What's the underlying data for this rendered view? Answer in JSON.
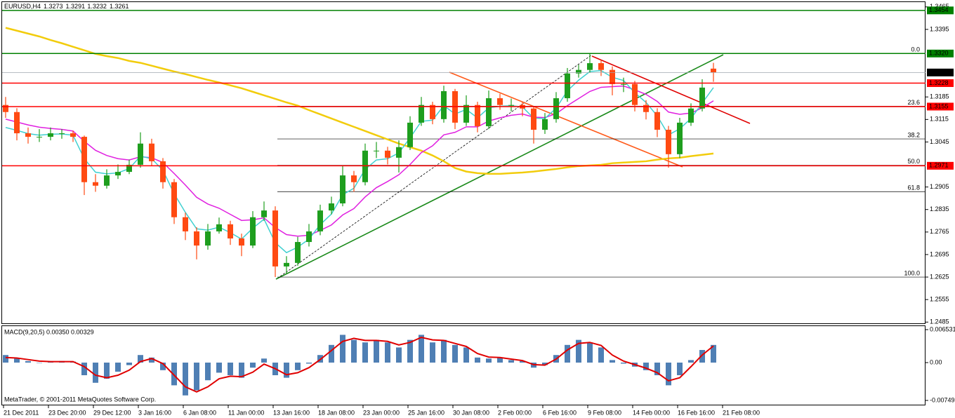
{
  "chart_data": {
    "type": "candlestick",
    "symbol": "EURUSD,H4",
    "copyright": "MetaTrader, © 2001-2011 MetaQuotes Software Corp.",
    "up_color": "#1e9e1e",
    "down_color": "#ff4a12",
    "ylim": [
      1.2479,
      1.3482
    ],
    "yticks": [
      1.3465,
      1.3395,
      1.3185,
      1.3115,
      1.3045,
      1.2905,
      1.2835,
      1.2765,
      1.2695,
      1.2625,
      1.2555,
      1.2485
    ],
    "xtick_labels": [
      "21 Dec 2011",
      "23 Dec 20:00",
      "29 Dec 12:00",
      "3 Jan 16:00",
      "6 Jan 08:00",
      "11 Jan 00:00",
      "13 Jan 16:00",
      "18 Jan 08:00",
      "23 Jan 00:00",
      "25 Jan 16:00",
      "30 Jan 08:00",
      "2 Feb 00:00",
      "6 Feb 16:00",
      "9 Feb 08:00",
      "14 Feb 00:00",
      "16 Feb 16:00",
      "21 Feb 08:00"
    ],
    "open": [
      1.316,
      1.3138,
      1.3072,
      1.3061,
      1.3061,
      1.3072,
      1.3072,
      1.3061,
      1.292,
      1.2909,
      1.2941,
      1.2952,
      1.2974,
      1.304,
      1.2985,
      1.292,
      1.2811,
      1.2767,
      1.2723,
      1.2767,
      1.2789,
      1.2745,
      1.2723,
      1.2811,
      1.2832,
      1.2658,
      1.2669,
      1.2734,
      1.2767,
      1.2832,
      1.2854,
      1.2941,
      1.292,
      1.3018,
      1.3018,
      1.2996,
      1.3029,
      1.3105,
      1.316,
      1.3116,
      1.3203,
      1.3105,
      1.316,
      1.3094,
      1.3181,
      1.316,
      1.316,
      1.3149,
      1.3083,
      1.3116,
      1.3181,
      1.3258,
      1.3269,
      1.329,
      1.3269,
      1.3225,
      1.3225,
      1.316,
      1.3138,
      1.3083,
      1.3007,
      1.3105,
      1.3149,
      1.3273
    ],
    "high": [
      1.3185,
      1.315,
      1.309,
      1.3085,
      1.309,
      1.3085,
      1.308,
      1.3065,
      1.2945,
      1.296,
      1.2975,
      1.299,
      1.3075,
      1.3055,
      1.2995,
      1.293,
      1.2825,
      1.278,
      1.279,
      1.281,
      1.28,
      1.276,
      1.283,
      1.286,
      1.2845,
      1.269,
      1.275,
      1.279,
      1.285,
      1.2875,
      1.297,
      1.2955,
      1.304,
      1.3045,
      1.303,
      1.305,
      1.3125,
      1.3185,
      1.317,
      1.322,
      1.321,
      1.319,
      1.317,
      1.3205,
      1.3195,
      1.318,
      1.317,
      1.3155,
      1.3135,
      1.32,
      1.3275,
      1.3285,
      1.332,
      1.33,
      1.328,
      1.3245,
      1.3235,
      1.3175,
      1.315,
      1.3095,
      1.312,
      1.3165,
      1.324,
      1.3291
    ],
    "low": [
      1.312,
      1.305,
      1.304,
      1.3045,
      1.305,
      1.3055,
      1.3045,
      1.288,
      1.289,
      1.29,
      1.293,
      1.2945,
      1.2965,
      1.297,
      1.29,
      1.279,
      1.274,
      1.268,
      1.271,
      1.276,
      1.2725,
      1.269,
      1.2715,
      1.28,
      1.2625,
      1.2635,
      1.266,
      1.272,
      1.2755,
      1.282,
      1.2845,
      1.289,
      1.291,
      1.2995,
      1.2975,
      1.295,
      1.302,
      1.3095,
      1.31,
      1.3105,
      1.3085,
      1.3095,
      1.3075,
      1.3085,
      1.3145,
      1.314,
      1.3125,
      1.304,
      1.307,
      1.3105,
      1.317,
      1.3245,
      1.326,
      1.325,
      1.319,
      1.32,
      1.314,
      1.3115,
      1.306,
      1.2965,
      1.2995,
      1.3095,
      1.314,
      1.3232
    ],
    "close": [
      1.3138,
      1.3072,
      1.3061,
      1.3061,
      1.3072,
      1.3072,
      1.3061,
      1.292,
      1.2909,
      1.2941,
      1.2952,
      1.2974,
      1.304,
      1.2985,
      1.292,
      1.2811,
      1.2767,
      1.2723,
      1.2767,
      1.2789,
      1.2745,
      1.2723,
      1.2811,
      1.2832,
      1.2658,
      1.2669,
      1.2734,
      1.2767,
      1.2832,
      1.2854,
      1.2941,
      1.292,
      1.3018,
      1.3018,
      1.2996,
      1.3029,
      1.3105,
      1.316,
      1.3116,
      1.3203,
      1.3105,
      1.316,
      1.3094,
      1.3181,
      1.316,
      1.316,
      1.3149,
      1.3083,
      1.3116,
      1.3181,
      1.3258,
      1.3269,
      1.329,
      1.3269,
      1.3225,
      1.3225,
      1.316,
      1.3138,
      1.3083,
      1.3007,
      1.3105,
      1.3149,
      1.3214,
      1.3261
    ],
    "overlays": [
      {
        "color": "#f2cc0c",
        "values": [
          1.34,
          1.3391,
          1.3382,
          1.3373,
          1.3362,
          1.3352,
          1.3341,
          1.333,
          1.3319,
          1.3312,
          1.3306,
          1.3297,
          1.3291,
          1.3282,
          1.3273,
          1.3264,
          1.3256,
          1.3247,
          1.3238,
          1.323,
          1.3221,
          1.3212,
          1.3201,
          1.319,
          1.3179,
          1.3168,
          1.3158,
          1.3144,
          1.3131,
          1.3118,
          1.3105,
          1.3092,
          1.3079,
          1.3066,
          1.3053,
          1.304,
          1.3029,
          1.3018,
          1.3003,
          1.2985,
          1.2964,
          1.2953,
          1.2948,
          1.2946,
          1.2946,
          1.2948,
          1.295,
          1.2953,
          1.2957,
          1.2961,
          1.2966,
          1.297,
          1.2972,
          1.2974,
          1.2979,
          1.2981,
          1.2983,
          1.2985,
          1.299,
          1.2994,
          1.2996,
          1.3001,
          1.3005,
          1.3009
        ]
      },
      {
        "color": "#e020e0",
        "values": [
          1.3116,
          1.3107,
          1.3098,
          1.3091,
          1.3087,
          1.3084,
          1.3079,
          1.3047,
          1.3019,
          1.3003,
          1.2993,
          1.2989,
          1.2999,
          1.2996,
          1.2981,
          1.2947,
          1.2911,
          1.2873,
          1.2852,
          1.2839,
          1.282,
          1.2801,
          1.2803,
          1.2809,
          1.2779,
          1.2757,
          1.2752,
          1.2755,
          1.277,
          1.2787,
          1.2818,
          1.2838,
          1.2874,
          1.2903,
          1.2922,
          1.2943,
          1.2975,
          1.3012,
          1.3033,
          1.3067,
          1.3075,
          1.3092,
          1.3092,
          1.311,
          1.312,
          1.3128,
          1.3132,
          1.3122,
          1.3121,
          1.3133,
          1.3158,
          1.318,
          1.3202,
          1.3215,
          1.3217,
          1.3219,
          1.3207,
          1.3193,
          1.3171,
          1.3138,
          1.3131,
          1.3135,
          1.3151,
          1.3173
        ]
      },
      {
        "color": "#40d0d0",
        "values": [
          1.309,
          1.3081,
          1.3071,
          1.3066,
          1.3069,
          1.307,
          1.3066,
          1.2993,
          1.2951,
          1.2946,
          1.2949,
          1.2962,
          1.3001,
          1.2993,
          1.2957,
          1.2884,
          1.2826,
          1.2775,
          1.2771,
          1.278,
          1.2763,
          1.2743,
          1.2777,
          1.2805,
          1.2732,
          1.2701,
          1.2718,
          1.2743,
          1.2788,
          1.2821,
          1.2881,
          1.2901,
          1.296,
          1.2989,
          1.2993,
          1.3011,
          1.3058,
          1.3109,
          1.3113,
          1.3158,
          1.3132,
          1.3146,
          1.312,
          1.3151,
          1.3156,
          1.3158,
          1.3154,
          1.3119,
          1.3118,
          1.315,
          1.3204,
          1.3237,
          1.3264,
          1.3267,
          1.3246,
          1.3236,
          1.3198,
          1.3168,
          1.3126,
          1.3067,
          1.3086,
          1.3118,
          1.3166,
          1.3214
        ]
      }
    ],
    "levels": [
      {
        "price": 1.3454,
        "color": "#008000",
        "text_color": "#000000"
      },
      {
        "price": 1.332,
        "label": "1.3320",
        "color": "#008000",
        "text_color": "#000000"
      },
      {
        "price": 1.3261,
        "color": "#a0a8b0",
        "box_color": "#000000",
        "text_color": "#ffffff"
      },
      {
        "price": 1.3228,
        "color": "#ff0000",
        "text_color": "#000000"
      },
      {
        "price": 1.3155,
        "color": "#ff0000",
        "text_color": "#000000"
      },
      {
        "price": 1.2971,
        "color": "#ff0000",
        "text_color": "#000000"
      }
    ],
    "fib": {
      "from": 1.2625,
      "to": 1.332,
      "color": "#000000",
      "levels": [
        {
          "value": 0,
          "label": "0.0"
        },
        23.6,
        38.2,
        {
          "value": 50,
          "label": "50.0"
        },
        61.8,
        {
          "value": 100,
          "label": "100.0"
        }
      ]
    },
    "indicator": {
      "type": "macd",
      "title": "MACD(9,20,5) 0.00350 0.00329",
      "bar_color": "#4f7fb4",
      "line_color": "#e00000",
      "ylim": [
        -0.008476,
        0.007365
      ],
      "yticks": [
        0.006531,
        {
          "value": 0,
          "label": "0.00"
        },
        -0.007495
      ],
      "histogram": [
        0.0015,
        0.0008,
        0.0003,
        0.0,
        0.0001,
        0.0003,
        0.0002,
        -0.0025,
        -0.004,
        -0.0032,
        -0.0018,
        -0.0005,
        0.0015,
        0.001,
        -0.0015,
        -0.0045,
        -0.0065,
        -0.0055,
        -0.0035,
        -0.002,
        -0.0025,
        -0.003,
        -0.001,
        0.0008,
        -0.0025,
        -0.003,
        -0.0015,
        -0.0002,
        0.0015,
        0.0035,
        0.0055,
        0.0045,
        0.004,
        0.0045,
        0.004,
        0.003,
        0.0045,
        0.0055,
        0.004,
        0.0045,
        0.0035,
        0.003,
        0.001,
        0.0008,
        0.001,
        0.0005,
        0.0003,
        -0.001,
        -0.0005,
        0.0015,
        0.0035,
        0.0045,
        0.004,
        0.003,
        0.0005,
        -0.0002,
        -0.0008,
        -0.0015,
        -0.0025,
        -0.0045,
        -0.0025,
        0.0005,
        0.0025,
        0.0035
      ],
      "signal": [
        0.001,
        0.0009,
        0.0006,
        0.0003,
        0.0002,
        0.0002,
        0.0002,
        -0.0008,
        -0.0025,
        -0.003,
        -0.0025,
        -0.0015,
        0.0002,
        0.0008,
        -0.0002,
        -0.0025,
        -0.0048,
        -0.0058,
        -0.0048,
        -0.0032,
        -0.0027,
        -0.0028,
        -0.0019,
        -0.0003,
        -0.0012,
        -0.0024,
        -0.002,
        -0.001,
        0.0006,
        0.0024,
        0.0042,
        0.0048,
        0.0044,
        0.0044,
        0.0042,
        0.0035,
        0.004,
        0.005,
        0.0045,
        0.0044,
        0.0038,
        0.0032,
        0.0018,
        0.0011,
        0.001,
        0.0007,
        0.0004,
        -0.0004,
        -0.0005,
        0.0007,
        0.0025,
        0.0038,
        0.004,
        0.0034,
        0.0015,
        0.0003,
        -0.0004,
        -0.0011,
        -0.002,
        -0.0036,
        -0.003,
        -0.0008,
        0.0015,
        0.0033
      ]
    }
  }
}
